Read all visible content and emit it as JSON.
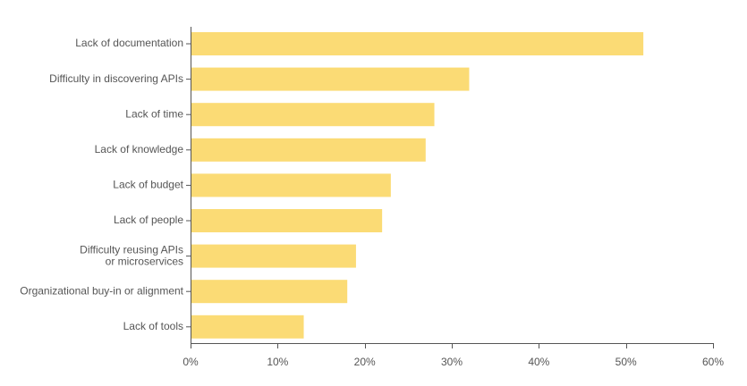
{
  "chart_data": {
    "type": "bar",
    "orientation": "horizontal",
    "categories": [
      "Lack of documentation",
      "Difficulty in discovering APIs",
      "Lack of time",
      "Lack of knowledge",
      "Lack of budget",
      "Lack of people",
      "Difficulty reusing APIs or microservices",
      "Organizational buy-in or alignment",
      "Lack of tools"
    ],
    "category_lines": [
      [
        "Lack of documentation"
      ],
      [
        "Difficulty in discovering APIs"
      ],
      [
        "Lack of time"
      ],
      [
        "Lack of knowledge"
      ],
      [
        "Lack of budget"
      ],
      [
        "Lack of people"
      ],
      [
        "Difficulty reusing APIs",
        "or microservices"
      ],
      [
        "Organizational buy-in or alignment"
      ],
      [
        "Lack of tools"
      ]
    ],
    "values": [
      52,
      32,
      28,
      27,
      23,
      22,
      19,
      18,
      13
    ],
    "xlim": [
      0,
      60
    ],
    "x_ticks": [
      0,
      10,
      20,
      30,
      40,
      50,
      60
    ],
    "x_tick_labels": [
      "0%",
      "10%",
      "20%",
      "30%",
      "40%",
      "50%",
      "60%"
    ],
    "title": "",
    "xlabel": "",
    "ylabel": "",
    "grid": false,
    "bar_color": "#FBDB75",
    "axis_color": "#555555",
    "text_color": "#555555"
  }
}
